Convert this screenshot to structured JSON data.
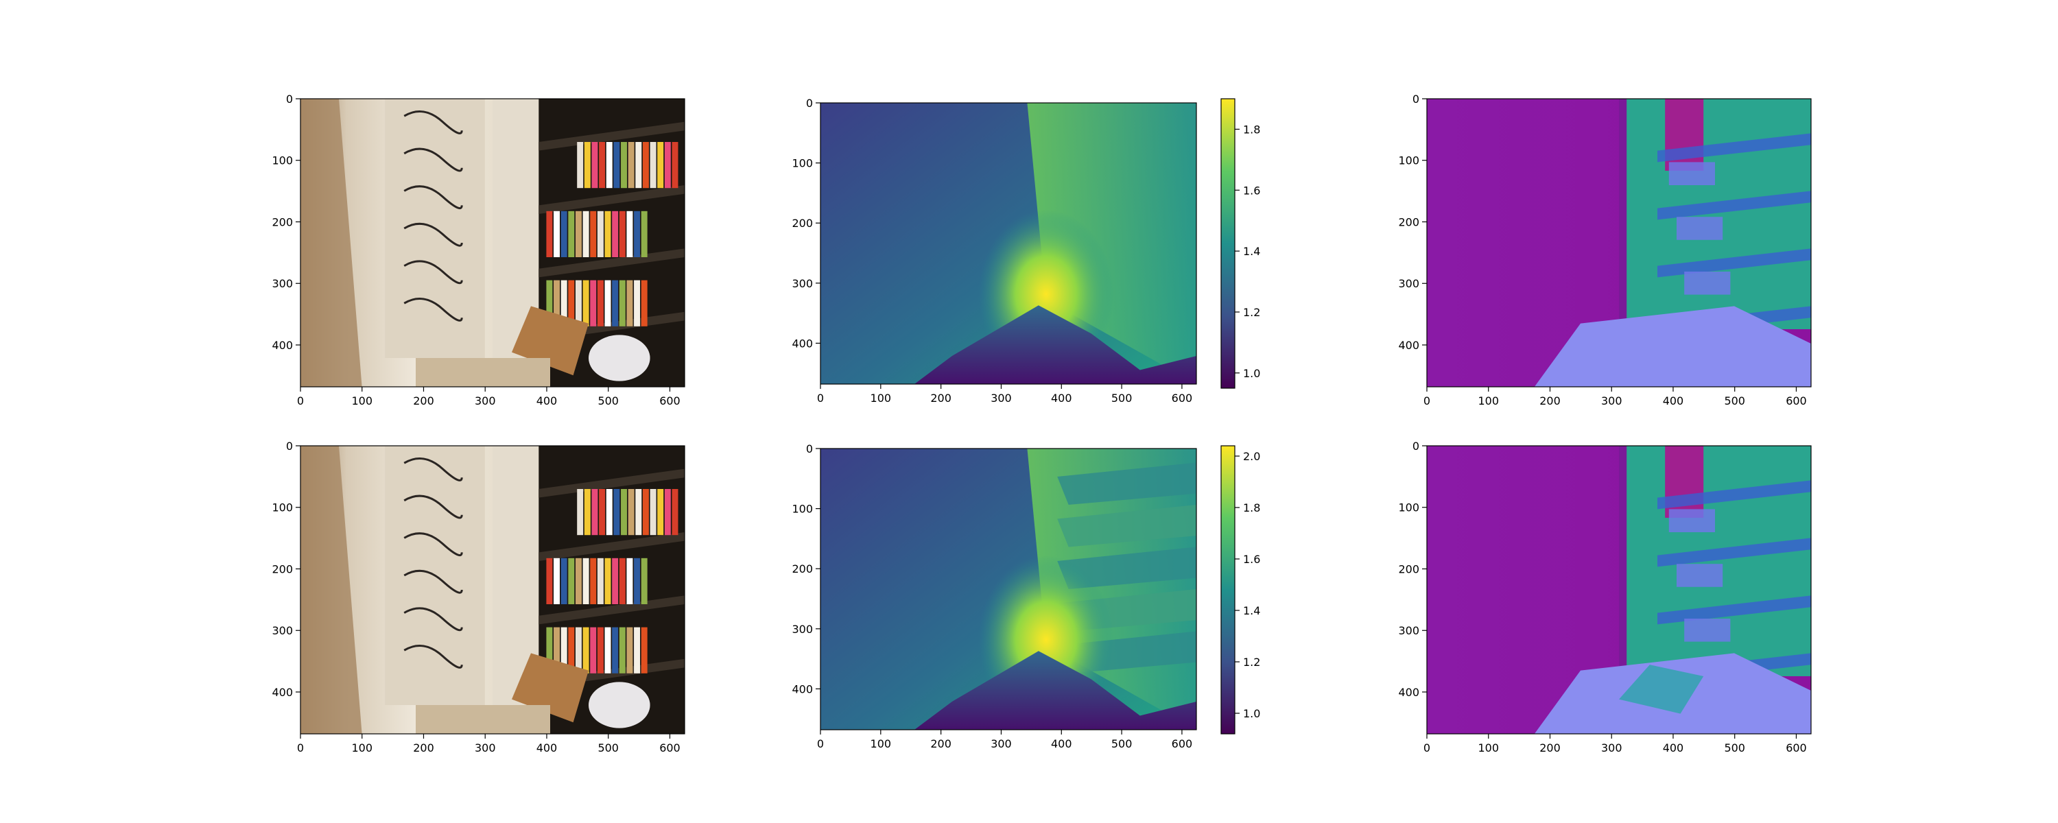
{
  "figure": {
    "description_free": true
  },
  "chart_data": [
    {
      "type": "heatmap",
      "panel": "rgb-image-top",
      "rows": "top",
      "content": "rgb-photo",
      "xticks": [
        0,
        100,
        200,
        300,
        400,
        500,
        600
      ],
      "yticks": [
        0,
        100,
        200,
        300,
        400
      ],
      "xlim": [
        0,
        624
      ],
      "ylim": [
        468,
        0
      ],
      "grid": false
    },
    {
      "type": "heatmap",
      "panel": "depth-map-top",
      "content": "depth",
      "colormap": "viridis",
      "colors": [
        "#440154",
        "#3b528b",
        "#21918c",
        "#5ec962",
        "#fde725"
      ],
      "xticks": [
        0,
        100,
        200,
        300,
        400,
        500,
        600
      ],
      "yticks": [
        0,
        100,
        200,
        300,
        400
      ],
      "xlim": [
        0,
        624
      ],
      "ylim": [
        468,
        0
      ],
      "colorbar": {
        "range": [
          0.95,
          1.9
        ],
        "ticks": [
          "1.0",
          "1.2",
          "1.4",
          "1.6",
          "1.8"
        ]
      },
      "grid": false
    },
    {
      "type": "heatmap",
      "panel": "normal-map-top",
      "content": "surface-normals",
      "xticks": [
        0,
        100,
        200,
        300,
        400,
        500,
        600
      ],
      "yticks": [
        0,
        100,
        200,
        300,
        400
      ],
      "xlim": [
        0,
        624
      ],
      "ylim": [
        468,
        0
      ],
      "grid": false
    },
    {
      "type": "heatmap",
      "panel": "rgb-image-bottom",
      "content": "rgb-photo",
      "xticks": [
        0,
        100,
        200,
        300,
        400,
        500,
        600
      ],
      "yticks": [
        0,
        100,
        200,
        300,
        400
      ],
      "xlim": [
        0,
        624
      ],
      "ylim": [
        468,
        0
      ],
      "grid": false
    },
    {
      "type": "heatmap",
      "panel": "depth-map-bottom",
      "content": "depth",
      "colormap": "viridis",
      "colors": [
        "#440154",
        "#3b528b",
        "#21918c",
        "#5ec962",
        "#fde725"
      ],
      "xticks": [
        0,
        100,
        200,
        300,
        400,
        500,
        600
      ],
      "yticks": [
        0,
        100,
        200,
        300,
        400
      ],
      "xlim": [
        0,
        624
      ],
      "ylim": [
        468,
        0
      ],
      "colorbar": {
        "range": [
          0.92,
          2.04
        ],
        "ticks": [
          "1.0",
          "1.2",
          "1.4",
          "1.6",
          "1.8",
          "2.0"
        ]
      },
      "grid": false
    },
    {
      "type": "heatmap",
      "panel": "normal-map-bottom",
      "content": "surface-normals",
      "xticks": [
        0,
        100,
        200,
        300,
        400,
        500,
        600
      ],
      "yticks": [
        0,
        100,
        200,
        300,
        400
      ],
      "xlim": [
        0,
        624
      ],
      "ylim": [
        468,
        0
      ],
      "grid": false
    }
  ],
  "palette": {
    "wall_light": "#e9e1d4",
    "wall_shadow": "#a88a66",
    "shelf_dark": "#1c1712",
    "cardboard": "#b07a45",
    "normal_wall": "#8d16a8",
    "normal_shelf": "#2aa58f",
    "normal_floor": "#8a8df0"
  }
}
